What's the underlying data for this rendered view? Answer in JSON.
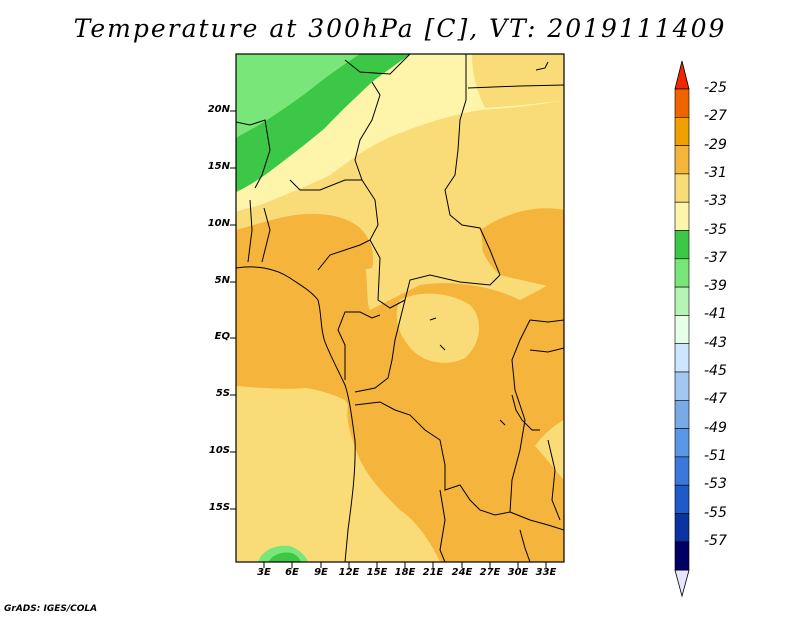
{
  "map": {
    "title": "Temperature at 300hPa [C], VT: 2019111409",
    "variable": "Temperature",
    "level": "300hPa",
    "units": "C",
    "valid_time": "2019111409",
    "lat_labels": [
      "20N",
      "15N",
      "10N",
      "5N",
      "EQ",
      "5S",
      "10S",
      "15S"
    ],
    "lon_labels": [
      "3E",
      "6E",
      "9E",
      "12E",
      "15E",
      "18E",
      "21E",
      "24E",
      "27E",
      "30E",
      "33E"
    ]
  },
  "colorbar": {
    "labels": [
      "-25",
      "-27",
      "-29",
      "-31",
      "-33",
      "-35",
      "-37",
      "-39",
      "-41",
      "-43",
      "-45",
      "-47",
      "-49",
      "-51",
      "-53",
      "-55",
      "-57"
    ],
    "colors": [
      "#f02800",
      "#f06400",
      "#f0a000",
      "#f5b43c",
      "#f9dc78",
      "#fff5aa",
      "#3cc846",
      "#78e678",
      "#b4f5b4",
      "#e6ffe6",
      "#cde6ff",
      "#a0c8f0",
      "#78aae6",
      "#5a96e6",
      "#3c78dc",
      "#1e5ac8",
      "#0a32a0",
      "#000064",
      "#e6e6ff"
    ]
  },
  "credit": "GrADS: IGES/COLA"
}
